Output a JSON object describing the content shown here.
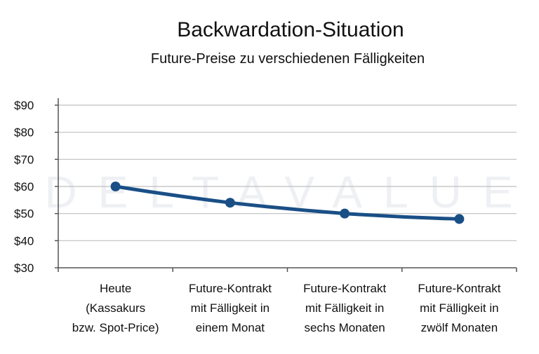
{
  "chart_data": {
    "type": "line",
    "title": "Backwardation-Situation",
    "subtitle": "Future-Preise zu verschiedenen Fälligkeiten",
    "watermark": "DELTAVALUE",
    "categories": [
      [
        "Heute",
        "(Kassakurs",
        "bzw. Spot-Price)"
      ],
      [
        "Future-Kontrakt",
        "mit Fälligkeit in",
        "einem Monat"
      ],
      [
        "Future-Kontrakt",
        "mit Fälligkeit in",
        "sechs Monaten"
      ],
      [
        "Future-Kontrakt",
        "mit Fälligkeit in",
        "zwölf Monaten"
      ]
    ],
    "series": [
      {
        "values": [
          60,
          54,
          50,
          48
        ]
      }
    ],
    "yticks": [
      "$90",
      "$80",
      "$70",
      "$60",
      "$50",
      "$40",
      "$30"
    ],
    "ylim": [
      30,
      90
    ],
    "grid": true,
    "legend": "none",
    "colors": {
      "line": "#1a4f86",
      "grid": "#bfbfbf",
      "axis": "#555555"
    }
  }
}
